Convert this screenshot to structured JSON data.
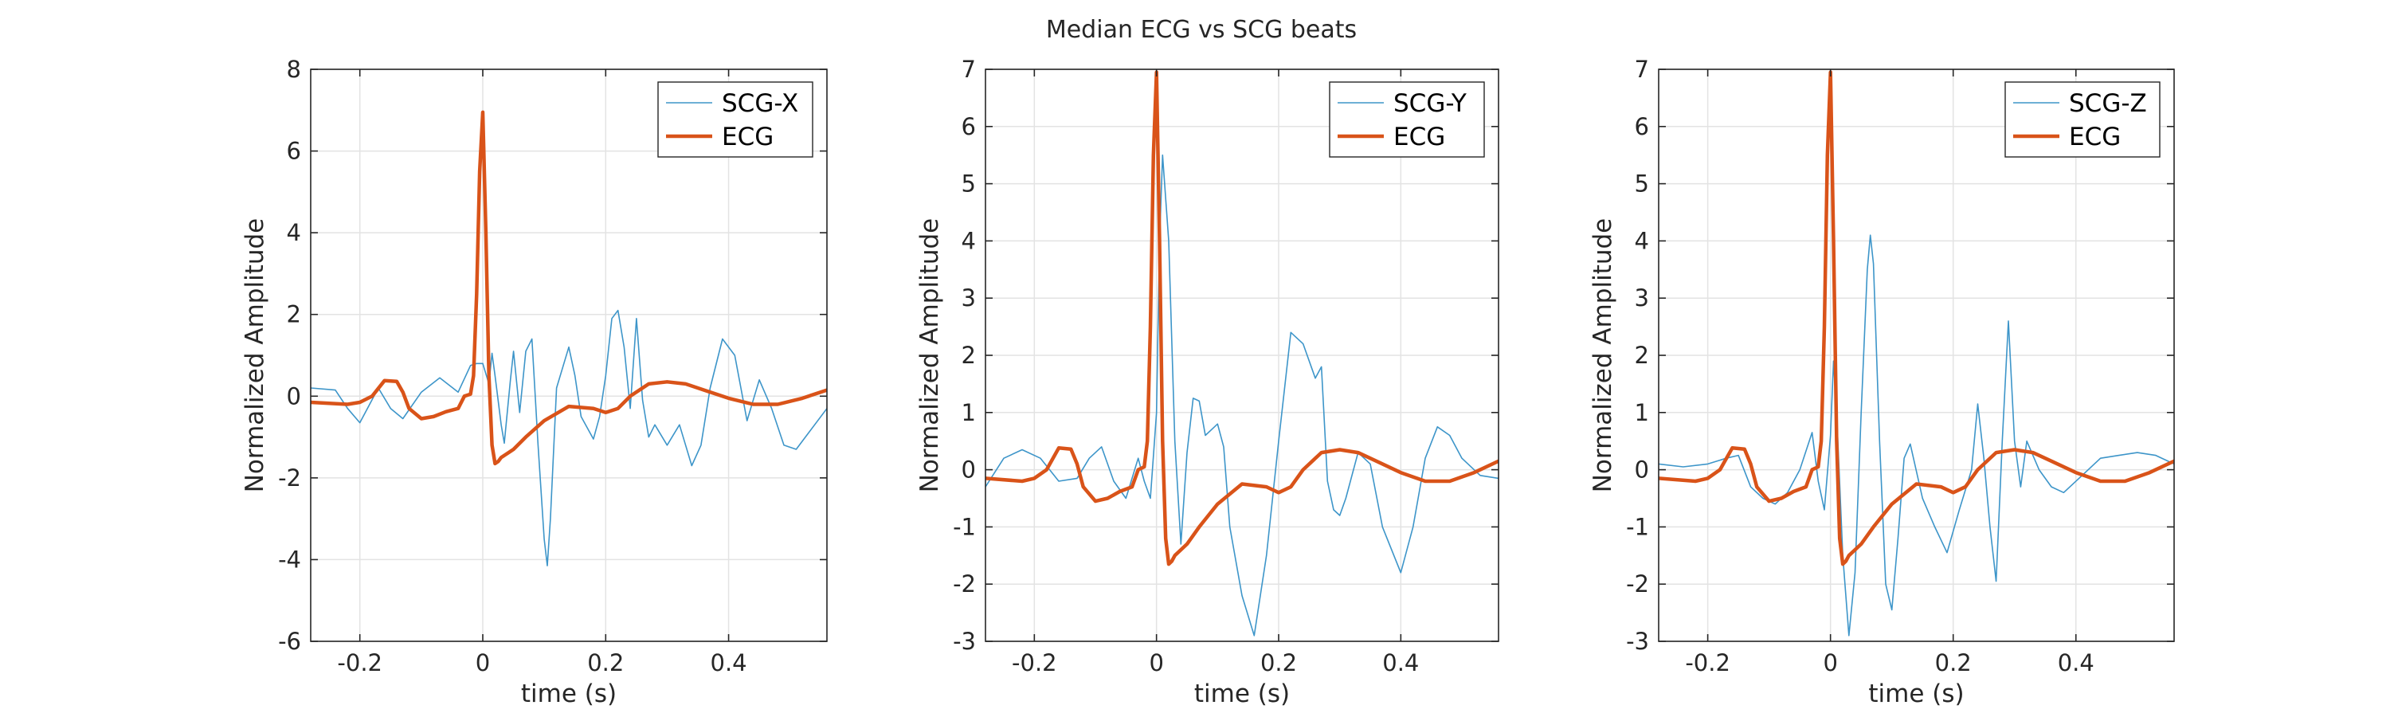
{
  "title": "Median ECG vs SCG beats",
  "colors": {
    "scg": "#3d95c9",
    "ecg": "#d95319",
    "grid": "#e3e3e3",
    "axis": "#262626"
  },
  "chart_data": [
    {
      "type": "line",
      "xlabel": "time (s)",
      "ylabel": "Normalized Amplitude",
      "xlim": [
        -0.28,
        0.56
      ],
      "ylim": [
        -6,
        8
      ],
      "xticks": [
        -0.2,
        0,
        0.2,
        0.4
      ],
      "xtick_labels": [
        "-0.2",
        "0",
        "0.2",
        "0.4"
      ],
      "yticks": [
        -6,
        -4,
        -2,
        0,
        2,
        4,
        6,
        8
      ],
      "ytick_labels": [
        "-6",
        "-4",
        "-2",
        "0",
        "2",
        "4",
        "6",
        "8"
      ],
      "grid": true,
      "legend": "top-right",
      "series": [
        {
          "name": "SCG-X",
          "x": [
            -0.28,
            -0.24,
            -0.22,
            -0.2,
            -0.17,
            -0.15,
            -0.13,
            -0.1,
            -0.07,
            -0.04,
            -0.02,
            -0.01,
            0,
            0.01,
            0.015,
            0.02,
            0.03,
            0.035,
            0.045,
            0.05,
            0.06,
            0.07,
            0.08,
            0.09,
            0.1,
            0.105,
            0.11,
            0.12,
            0.14,
            0.15,
            0.16,
            0.18,
            0.19,
            0.2,
            0.21,
            0.22,
            0.23,
            0.24,
            0.25,
            0.26,
            0.27,
            0.28,
            0.3,
            0.32,
            0.34,
            0.355,
            0.37,
            0.39,
            0.41,
            0.43,
            0.45,
            0.47,
            0.49,
            0.51,
            0.53,
            0.56
          ],
          "values": [
            0.2,
            0.15,
            -0.3,
            -0.65,
            0.2,
            -0.3,
            -0.55,
            0.1,
            0.45,
            0.1,
            0.75,
            0.8,
            0.8,
            0.3,
            1.05,
            0.5,
            -0.7,
            -1.15,
            0.4,
            1.1,
            -0.4,
            1.1,
            1.4,
            -1.2,
            -3.5,
            -4.15,
            -3.0,
            0.2,
            1.2,
            0.5,
            -0.5,
            -1.05,
            -0.5,
            0.5,
            1.9,
            2.1,
            1.2,
            -0.3,
            1.9,
            -0.1,
            -1.0,
            -0.7,
            -1.2,
            -0.7,
            -1.7,
            -1.2,
            0.2,
            1.4,
            1.0,
            -0.6,
            0.4,
            -0.3,
            -1.2,
            -1.3,
            -0.9,
            -0.3
          ]
        },
        {
          "name": "ECG",
          "x": [
            -0.28,
            -0.22,
            -0.2,
            -0.18,
            -0.16,
            -0.14,
            -0.13,
            -0.12,
            -0.1,
            -0.08,
            -0.06,
            -0.04,
            -0.03,
            -0.02,
            -0.015,
            -0.01,
            -0.005,
            0,
            0.005,
            0.01,
            0.015,
            0.02,
            0.025,
            0.03,
            0.04,
            0.05,
            0.07,
            0.1,
            0.14,
            0.18,
            0.2,
            0.22,
            0.24,
            0.27,
            0.3,
            0.33,
            0.36,
            0.4,
            0.44,
            0.48,
            0.52,
            0.56
          ],
          "values": [
            -0.15,
            -0.2,
            -0.15,
            0.0,
            0.38,
            0.36,
            0.1,
            -0.3,
            -0.55,
            -0.5,
            -0.38,
            -0.3,
            0.0,
            0.05,
            0.5,
            2.5,
            5.5,
            6.95,
            4.0,
            0.5,
            -1.2,
            -1.65,
            -1.6,
            -1.5,
            -1.4,
            -1.3,
            -1.0,
            -0.6,
            -0.25,
            -0.3,
            -0.4,
            -0.3,
            0.0,
            0.3,
            0.35,
            0.3,
            0.15,
            -0.05,
            -0.2,
            -0.2,
            -0.05,
            0.15
          ]
        }
      ]
    },
    {
      "type": "line",
      "xlabel": "time (s)",
      "ylabel": "Normalized Amplitude",
      "xlim": [
        -0.28,
        0.56
      ],
      "ylim": [
        -3,
        7
      ],
      "xticks": [
        -0.2,
        0,
        0.2,
        0.4
      ],
      "xtick_labels": [
        "-0.2",
        "0",
        "0.2",
        "0.4"
      ],
      "yticks": [
        -3,
        -2,
        -1,
        0,
        1,
        2,
        3,
        4,
        5,
        6,
        7
      ],
      "ytick_labels": [
        "-3",
        "-2",
        "-1",
        "0",
        "1",
        "2",
        "3",
        "4",
        "5",
        "6",
        "7"
      ],
      "grid": true,
      "legend": "top-right",
      "series": [
        {
          "name": "SCG-Y",
          "x": [
            -0.28,
            -0.25,
            -0.22,
            -0.19,
            -0.16,
            -0.13,
            -0.11,
            -0.09,
            -0.07,
            -0.05,
            -0.03,
            -0.02,
            -0.01,
            0,
            0.005,
            0.01,
            0.02,
            0.03,
            0.04,
            0.05,
            0.06,
            0.07,
            0.08,
            0.09,
            0.1,
            0.11,
            0.12,
            0.14,
            0.16,
            0.18,
            0.2,
            0.22,
            0.24,
            0.26,
            0.27,
            0.28,
            0.29,
            0.3,
            0.31,
            0.33,
            0.35,
            0.37,
            0.4,
            0.42,
            0.44,
            0.46,
            0.48,
            0.5,
            0.53,
            0.56
          ],
          "values": [
            -0.3,
            0.2,
            0.35,
            0.2,
            -0.2,
            -0.15,
            0.2,
            0.4,
            -0.2,
            -0.5,
            0.2,
            -0.2,
            -0.5,
            1.0,
            4.0,
            5.5,
            4.0,
            0.5,
            -1.3,
            0.3,
            1.25,
            1.2,
            0.6,
            0.7,
            0.8,
            0.4,
            -1.0,
            -2.2,
            -2.9,
            -1.5,
            0.5,
            2.4,
            2.2,
            1.6,
            1.8,
            -0.2,
            -0.7,
            -0.8,
            -0.5,
            0.3,
            0.1,
            -1.0,
            -1.8,
            -1.0,
            0.2,
            0.75,
            0.6,
            0.2,
            -0.1,
            -0.15
          ]
        },
        {
          "name": "ECG",
          "x": [
            -0.28,
            -0.22,
            -0.2,
            -0.18,
            -0.16,
            -0.14,
            -0.13,
            -0.12,
            -0.1,
            -0.08,
            -0.06,
            -0.04,
            -0.03,
            -0.02,
            -0.015,
            -0.01,
            -0.005,
            0,
            0.005,
            0.01,
            0.015,
            0.02,
            0.025,
            0.03,
            0.04,
            0.05,
            0.07,
            0.1,
            0.14,
            0.18,
            0.2,
            0.22,
            0.24,
            0.27,
            0.3,
            0.33,
            0.36,
            0.4,
            0.44,
            0.48,
            0.52,
            0.56
          ],
          "values": [
            -0.15,
            -0.2,
            -0.15,
            0.0,
            0.38,
            0.36,
            0.1,
            -0.3,
            -0.55,
            -0.5,
            -0.38,
            -0.3,
            0.0,
            0.05,
            0.5,
            2.5,
            5.5,
            6.95,
            4.0,
            0.5,
            -1.2,
            -1.65,
            -1.6,
            -1.5,
            -1.4,
            -1.3,
            -1.0,
            -0.6,
            -0.25,
            -0.3,
            -0.4,
            -0.3,
            0.0,
            0.3,
            0.35,
            0.3,
            0.15,
            -0.05,
            -0.2,
            -0.2,
            -0.05,
            0.15
          ]
        }
      ]
    },
    {
      "type": "line",
      "xlabel": "time (s)",
      "ylabel": "Normalized Amplitude",
      "xlim": [
        -0.28,
        0.56
      ],
      "ylim": [
        -3,
        7
      ],
      "xticks": [
        -0.2,
        0,
        0.2,
        0.4
      ],
      "xtick_labels": [
        "-0.2",
        "0",
        "0.2",
        "0.4"
      ],
      "yticks": [
        -3,
        -2,
        -1,
        0,
        1,
        2,
        3,
        4,
        5,
        6,
        7
      ],
      "ytick_labels": [
        "-3",
        "-2",
        "-1",
        "0",
        "1",
        "2",
        "3",
        "4",
        "5",
        "6",
        "7"
      ],
      "grid": true,
      "legend": "top-right",
      "series": [
        {
          "name": "SCG-Z",
          "x": [
            -0.28,
            -0.24,
            -0.2,
            -0.17,
            -0.15,
            -0.13,
            -0.11,
            -0.09,
            -0.07,
            -0.05,
            -0.03,
            -0.02,
            -0.01,
            0,
            0.005,
            0.01,
            0.02,
            0.03,
            0.04,
            0.05,
            0.06,
            0.065,
            0.07,
            0.08,
            0.09,
            0.1,
            0.11,
            0.12,
            0.13,
            0.15,
            0.17,
            0.19,
            0.21,
            0.23,
            0.24,
            0.25,
            0.26,
            0.27,
            0.28,
            0.29,
            0.3,
            0.31,
            0.32,
            0.34,
            0.36,
            0.38,
            0.41,
            0.44,
            0.47,
            0.5,
            0.53,
            0.56
          ],
          "values": [
            0.1,
            0.05,
            0.1,
            0.2,
            0.25,
            -0.3,
            -0.5,
            -0.6,
            -0.4,
            0.0,
            0.65,
            -0.2,
            -0.7,
            0.6,
            1.9,
            1.0,
            -1.5,
            -2.9,
            -1.8,
            1.0,
            3.5,
            4.1,
            3.6,
            0.5,
            -2.0,
            -2.45,
            -1.2,
            0.2,
            0.45,
            -0.5,
            -1.0,
            -1.45,
            -0.7,
            0.0,
            1.15,
            0.2,
            -1.0,
            -1.95,
            0.5,
            2.6,
            0.5,
            -0.3,
            0.5,
            0.0,
            -0.3,
            -0.4,
            -0.1,
            0.2,
            0.25,
            0.3,
            0.25,
            0.1
          ]
        },
        {
          "name": "ECG",
          "x": [
            -0.28,
            -0.22,
            -0.2,
            -0.18,
            -0.16,
            -0.14,
            -0.13,
            -0.12,
            -0.1,
            -0.08,
            -0.06,
            -0.04,
            -0.03,
            -0.02,
            -0.015,
            -0.01,
            -0.005,
            0,
            0.005,
            0.01,
            0.015,
            0.02,
            0.025,
            0.03,
            0.04,
            0.05,
            0.07,
            0.1,
            0.14,
            0.18,
            0.2,
            0.22,
            0.24,
            0.27,
            0.3,
            0.33,
            0.36,
            0.4,
            0.44,
            0.48,
            0.52,
            0.56
          ],
          "values": [
            -0.15,
            -0.2,
            -0.15,
            0.0,
            0.38,
            0.36,
            0.1,
            -0.3,
            -0.55,
            -0.5,
            -0.38,
            -0.3,
            0.0,
            0.05,
            0.5,
            2.5,
            5.5,
            6.95,
            4.0,
            0.5,
            -1.2,
            -1.65,
            -1.6,
            -1.5,
            -1.4,
            -1.3,
            -1.0,
            -0.6,
            -0.25,
            -0.3,
            -0.4,
            -0.3,
            0.0,
            0.3,
            0.35,
            0.3,
            0.15,
            -0.05,
            -0.2,
            -0.2,
            -0.05,
            0.15
          ]
        }
      ]
    }
  ]
}
